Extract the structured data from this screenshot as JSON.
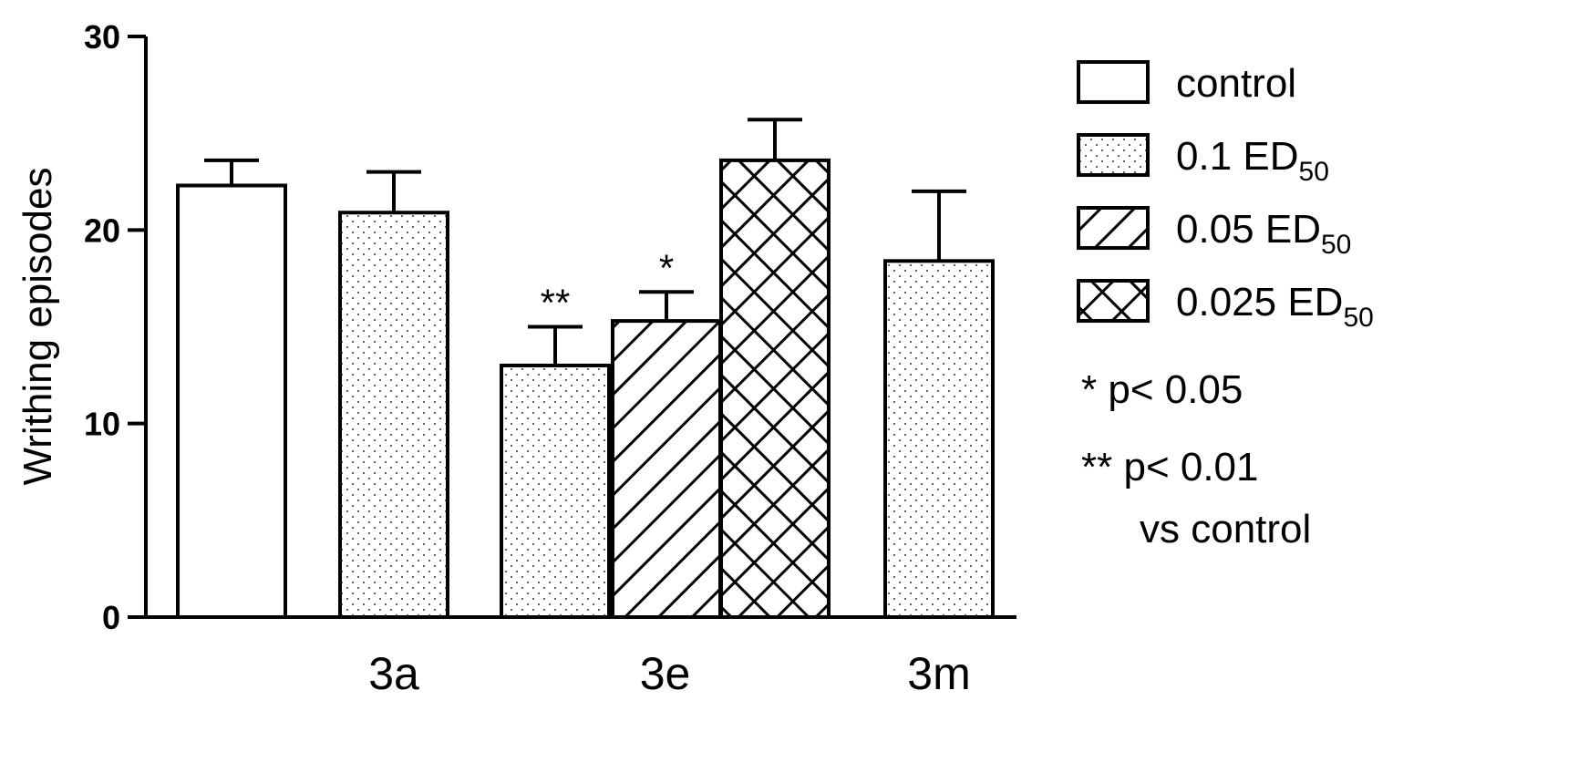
{
  "chart_data": {
    "type": "bar",
    "ylabel": "Writhing episodes",
    "xlabel": "",
    "ylim": [
      0,
      30
    ],
    "yticks": [
      0,
      10,
      20,
      30
    ],
    "groups": [
      {
        "label": "",
        "bars": [
          {
            "series": "control",
            "value": 22.3,
            "error": 1.3
          }
        ]
      },
      {
        "label": "3a",
        "bars": [
          {
            "series": "0.1 ED50",
            "value": 20.9,
            "error": 2.1
          }
        ]
      },
      {
        "label": "3e",
        "bars": [
          {
            "series": "0.1 ED50",
            "value": 13.0,
            "error": 2.0,
            "annotation": "**"
          },
          {
            "series": "0.05 ED50",
            "value": 15.3,
            "error": 1.5,
            "annotation": "*"
          },
          {
            "series": "0.025 ED50",
            "value": 23.6,
            "error": 2.1
          }
        ]
      },
      {
        "label": "3m",
        "bars": [
          {
            "series": "0.1 ED50",
            "value": 18.4,
            "error": 3.6
          }
        ]
      }
    ],
    "legend": {
      "placement": "right",
      "items": [
        {
          "series": "control",
          "text": "control",
          "sub": "",
          "pattern": "none"
        },
        {
          "series": "0.1 ED50",
          "text": "0.1 ED",
          "sub": "50",
          "pattern": "dots"
        },
        {
          "series": "0.05 ED50",
          "text": "0.05 ED",
          "sub": "50",
          "pattern": "diagonal"
        },
        {
          "series": "0.025 ED50",
          "text": "0.025 ED",
          "sub": "50",
          "pattern": "crosshatch"
        }
      ]
    },
    "notes": [
      "* p< 0.05",
      "** p< 0.01",
      "vs control"
    ],
    "grid": false
  }
}
